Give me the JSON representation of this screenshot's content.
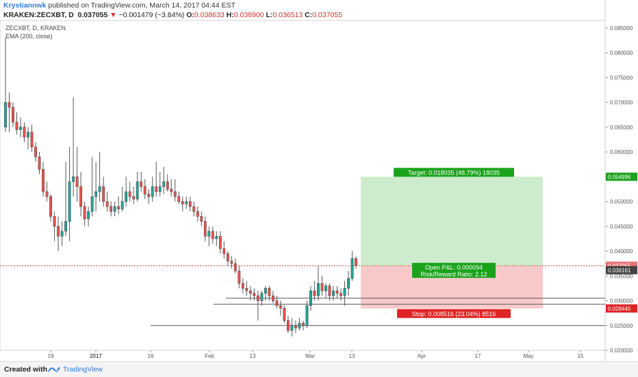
{
  "header": {
    "author": "Krystiannwk",
    "published": "published on TradingView.com, March 14, 2017 04:44 EST",
    "symbol_line": "KRAKEN:ZECXBT, D",
    "last": "0.037055",
    "arrow": "▼",
    "change": "−0.001479 (−3.84%)",
    "o_label": "O:",
    "o_value": "0.038633",
    "h_label": "H:",
    "h_value": "0.038900",
    "l_label": "L:",
    "l_value": "0.036513",
    "c_label": "C:",
    "c_value": "0.037055"
  },
  "legend": {
    "title": "ZECXBT, D, KRAKEN",
    "indicator": "EMA (200, close)"
  },
  "footer": {
    "created_with": "Created with",
    "brand": "TradingView"
  },
  "colors": {
    "up": "#26a69a",
    "down": "#ef5350",
    "target_zone": "#cdeccd",
    "stop_zone": "#f9c9c9",
    "target_badge": "#1aa31a",
    "stop_badge": "#e02424",
    "pnl_badge": "#1aa31a",
    "price_dotted": "#e0443a"
  },
  "chart_data": {
    "type": "candlestick",
    "price_axis_ticks": [
      "0.085000",
      "0.080000",
      "0.075000",
      "0.070000",
      "0.065000",
      "0.060000",
      "0.055000",
      "0.050000",
      "0.045000",
      "0.040000",
      "0.035000",
      "0.030000",
      "0.025000",
      "0.020000"
    ],
    "ylim": [
      0.02,
      0.0865
    ],
    "time_axis_ticks": [
      "19",
      "2017",
      "16",
      "Feb",
      "13",
      "Mar",
      "13",
      "Apr",
      "17",
      "May",
      "15"
    ],
    "price_labels": {
      "target": "0.054996",
      "last": "0.037055",
      "entry": "0.036961",
      "stop": "0.028445"
    },
    "position": {
      "target_text": "Target: 0.018035 (48.79%) 18035",
      "stop_text": "Stop: 0.008516 (23.04%) 8516",
      "pnl_text": "Open P&L: 0.000094",
      "rr_text": "Risk/Reward Ratio: 2.12",
      "entry": 0.036961,
      "target": 0.054996,
      "stop": 0.028445
    },
    "horizontal_lines": [
      0.0305,
      0.0293,
      0.025
    ],
    "candles": [
      {
        "o": 0.065,
        "h": 0.083,
        "l": 0.064,
        "c": 0.07
      },
      {
        "o": 0.07,
        "h": 0.072,
        "l": 0.064,
        "c": 0.069
      },
      {
        "o": 0.069,
        "h": 0.07,
        "l": 0.065,
        "c": 0.066
      },
      {
        "o": 0.066,
        "h": 0.068,
        "l": 0.0635,
        "c": 0.0645
      },
      {
        "o": 0.0645,
        "h": 0.067,
        "l": 0.063,
        "c": 0.065
      },
      {
        "o": 0.065,
        "h": 0.066,
        "l": 0.062,
        "c": 0.063
      },
      {
        "o": 0.063,
        "h": 0.065,
        "l": 0.0605,
        "c": 0.064
      },
      {
        "o": 0.064,
        "h": 0.0655,
        "l": 0.06,
        "c": 0.061
      },
      {
        "o": 0.061,
        "h": 0.062,
        "l": 0.058,
        "c": 0.059
      },
      {
        "o": 0.059,
        "h": 0.06,
        "l": 0.0555,
        "c": 0.0565
      },
      {
        "o": 0.0565,
        "h": 0.058,
        "l": 0.051,
        "c": 0.052
      },
      {
        "o": 0.052,
        "h": 0.054,
        "l": 0.05,
        "c": 0.051
      },
      {
        "o": 0.051,
        "h": 0.0515,
        "l": 0.046,
        "c": 0.047
      },
      {
        "o": 0.047,
        "h": 0.048,
        "l": 0.042,
        "c": 0.045
      },
      {
        "o": 0.045,
        "h": 0.047,
        "l": 0.04,
        "c": 0.043
      },
      {
        "o": 0.043,
        "h": 0.046,
        "l": 0.041,
        "c": 0.044
      },
      {
        "o": 0.044,
        "h": 0.058,
        "l": 0.043,
        "c": 0.046
      },
      {
        "o": 0.046,
        "h": 0.061,
        "l": 0.042,
        "c": 0.054
      },
      {
        "o": 0.054,
        "h": 0.071,
        "l": 0.051,
        "c": 0.055
      },
      {
        "o": 0.055,
        "h": 0.061,
        "l": 0.05,
        "c": 0.053
      },
      {
        "o": 0.053,
        "h": 0.056,
        "l": 0.047,
        "c": 0.049
      },
      {
        "o": 0.049,
        "h": 0.05,
        "l": 0.045,
        "c": 0.0465
      },
      {
        "o": 0.0465,
        "h": 0.049,
        "l": 0.045,
        "c": 0.048
      },
      {
        "o": 0.048,
        "h": 0.059,
        "l": 0.047,
        "c": 0.051
      },
      {
        "o": 0.051,
        "h": 0.058,
        "l": 0.048,
        "c": 0.052
      },
      {
        "o": 0.052,
        "h": 0.06,
        "l": 0.05,
        "c": 0.053
      },
      {
        "o": 0.053,
        "h": 0.055,
        "l": 0.049,
        "c": 0.05
      },
      {
        "o": 0.05,
        "h": 0.052,
        "l": 0.048,
        "c": 0.049
      },
      {
        "o": 0.049,
        "h": 0.05,
        "l": 0.047,
        "c": 0.048
      },
      {
        "o": 0.048,
        "h": 0.05,
        "l": 0.047,
        "c": 0.049
      },
      {
        "o": 0.049,
        "h": 0.051,
        "l": 0.0475,
        "c": 0.0485
      },
      {
        "o": 0.0485,
        "h": 0.053,
        "l": 0.048,
        "c": 0.05
      },
      {
        "o": 0.05,
        "h": 0.055,
        "l": 0.049,
        "c": 0.052
      },
      {
        "o": 0.052,
        "h": 0.054,
        "l": 0.05,
        "c": 0.051
      },
      {
        "o": 0.051,
        "h": 0.053,
        "l": 0.0495,
        "c": 0.0505
      },
      {
        "o": 0.0505,
        "h": 0.056,
        "l": 0.05,
        "c": 0.054
      },
      {
        "o": 0.054,
        "h": 0.056,
        "l": 0.052,
        "c": 0.053
      },
      {
        "o": 0.053,
        "h": 0.0545,
        "l": 0.0505,
        "c": 0.0515
      },
      {
        "o": 0.0515,
        "h": 0.0525,
        "l": 0.0495,
        "c": 0.051
      },
      {
        "o": 0.051,
        "h": 0.055,
        "l": 0.05,
        "c": 0.053
      },
      {
        "o": 0.053,
        "h": 0.058,
        "l": 0.051,
        "c": 0.052
      },
      {
        "o": 0.052,
        "h": 0.056,
        "l": 0.051,
        "c": 0.053
      },
      {
        "o": 0.053,
        "h": 0.057,
        "l": 0.0515,
        "c": 0.054
      },
      {
        "o": 0.054,
        "h": 0.0555,
        "l": 0.052,
        "c": 0.0525
      },
      {
        "o": 0.0525,
        "h": 0.0545,
        "l": 0.051,
        "c": 0.052
      },
      {
        "o": 0.052,
        "h": 0.0545,
        "l": 0.05,
        "c": 0.051
      },
      {
        "o": 0.051,
        "h": 0.052,
        "l": 0.0495,
        "c": 0.05
      },
      {
        "o": 0.05,
        "h": 0.051,
        "l": 0.048,
        "c": 0.0495
      },
      {
        "o": 0.0495,
        "h": 0.051,
        "l": 0.0485,
        "c": 0.05
      },
      {
        "o": 0.05,
        "h": 0.051,
        "l": 0.048,
        "c": 0.049
      },
      {
        "o": 0.049,
        "h": 0.05,
        "l": 0.047,
        "c": 0.048
      },
      {
        "o": 0.048,
        "h": 0.049,
        "l": 0.046,
        "c": 0.047
      },
      {
        "o": 0.047,
        "h": 0.048,
        "l": 0.045,
        "c": 0.046
      },
      {
        "o": 0.046,
        "h": 0.047,
        "l": 0.042,
        "c": 0.043
      },
      {
        "o": 0.043,
        "h": 0.045,
        "l": 0.041,
        "c": 0.044
      },
      {
        "o": 0.044,
        "h": 0.045,
        "l": 0.0415,
        "c": 0.0425
      },
      {
        "o": 0.0425,
        "h": 0.044,
        "l": 0.041,
        "c": 0.043
      },
      {
        "o": 0.043,
        "h": 0.044,
        "l": 0.0395,
        "c": 0.0405
      },
      {
        "o": 0.0405,
        "h": 0.042,
        "l": 0.0385,
        "c": 0.0395
      },
      {
        "o": 0.0395,
        "h": 0.04,
        "l": 0.037,
        "c": 0.038
      },
      {
        "o": 0.038,
        "h": 0.039,
        "l": 0.0365,
        "c": 0.0375
      },
      {
        "o": 0.0375,
        "h": 0.0385,
        "l": 0.0355,
        "c": 0.036
      },
      {
        "o": 0.036,
        "h": 0.037,
        "l": 0.0325,
        "c": 0.0335
      },
      {
        "o": 0.0335,
        "h": 0.0345,
        "l": 0.0315,
        "c": 0.0325
      },
      {
        "o": 0.0325,
        "h": 0.034,
        "l": 0.031,
        "c": 0.032
      },
      {
        "o": 0.032,
        "h": 0.033,
        "l": 0.03,
        "c": 0.0315
      },
      {
        "o": 0.0315,
        "h": 0.0325,
        "l": 0.03,
        "c": 0.031
      },
      {
        "o": 0.031,
        "h": 0.032,
        "l": 0.026,
        "c": 0.03
      },
      {
        "o": 0.03,
        "h": 0.032,
        "l": 0.029,
        "c": 0.0315
      },
      {
        "o": 0.0315,
        "h": 0.033,
        "l": 0.03,
        "c": 0.0325
      },
      {
        "o": 0.0325,
        "h": 0.033,
        "l": 0.03,
        "c": 0.031
      },
      {
        "o": 0.031,
        "h": 0.032,
        "l": 0.0295,
        "c": 0.03
      },
      {
        "o": 0.03,
        "h": 0.031,
        "l": 0.0285,
        "c": 0.029
      },
      {
        "o": 0.029,
        "h": 0.03,
        "l": 0.027,
        "c": 0.0285
      },
      {
        "o": 0.0285,
        "h": 0.029,
        "l": 0.0255,
        "c": 0.026
      },
      {
        "o": 0.026,
        "h": 0.027,
        "l": 0.0235,
        "c": 0.024
      },
      {
        "o": 0.024,
        "h": 0.0265,
        "l": 0.0228,
        "c": 0.025
      },
      {
        "o": 0.025,
        "h": 0.026,
        "l": 0.0235,
        "c": 0.0245
      },
      {
        "o": 0.0245,
        "h": 0.0265,
        "l": 0.024,
        "c": 0.0255
      },
      {
        "o": 0.0255,
        "h": 0.026,
        "l": 0.024,
        "c": 0.025
      },
      {
        "o": 0.025,
        "h": 0.03,
        "l": 0.0245,
        "c": 0.029
      },
      {
        "o": 0.029,
        "h": 0.033,
        "l": 0.028,
        "c": 0.032
      },
      {
        "o": 0.032,
        "h": 0.034,
        "l": 0.03,
        "c": 0.031
      },
      {
        "o": 0.031,
        "h": 0.037,
        "l": 0.03,
        "c": 0.0335
      },
      {
        "o": 0.0335,
        "h": 0.035,
        "l": 0.031,
        "c": 0.032
      },
      {
        "o": 0.032,
        "h": 0.0335,
        "l": 0.0305,
        "c": 0.033
      },
      {
        "o": 0.033,
        "h": 0.0335,
        "l": 0.03,
        "c": 0.031
      },
      {
        "o": 0.031,
        "h": 0.033,
        "l": 0.03,
        "c": 0.032
      },
      {
        "o": 0.032,
        "h": 0.033,
        "l": 0.0305,
        "c": 0.0315
      },
      {
        "o": 0.0315,
        "h": 0.0325,
        "l": 0.03,
        "c": 0.031
      },
      {
        "o": 0.031,
        "h": 0.034,
        "l": 0.029,
        "c": 0.0325
      },
      {
        "o": 0.0325,
        "h": 0.036,
        "l": 0.031,
        "c": 0.0345
      },
      {
        "o": 0.0345,
        "h": 0.04,
        "l": 0.034,
        "c": 0.0385
      },
      {
        "o": 0.0385,
        "h": 0.0389,
        "l": 0.0365,
        "c": 0.0371
      }
    ]
  }
}
